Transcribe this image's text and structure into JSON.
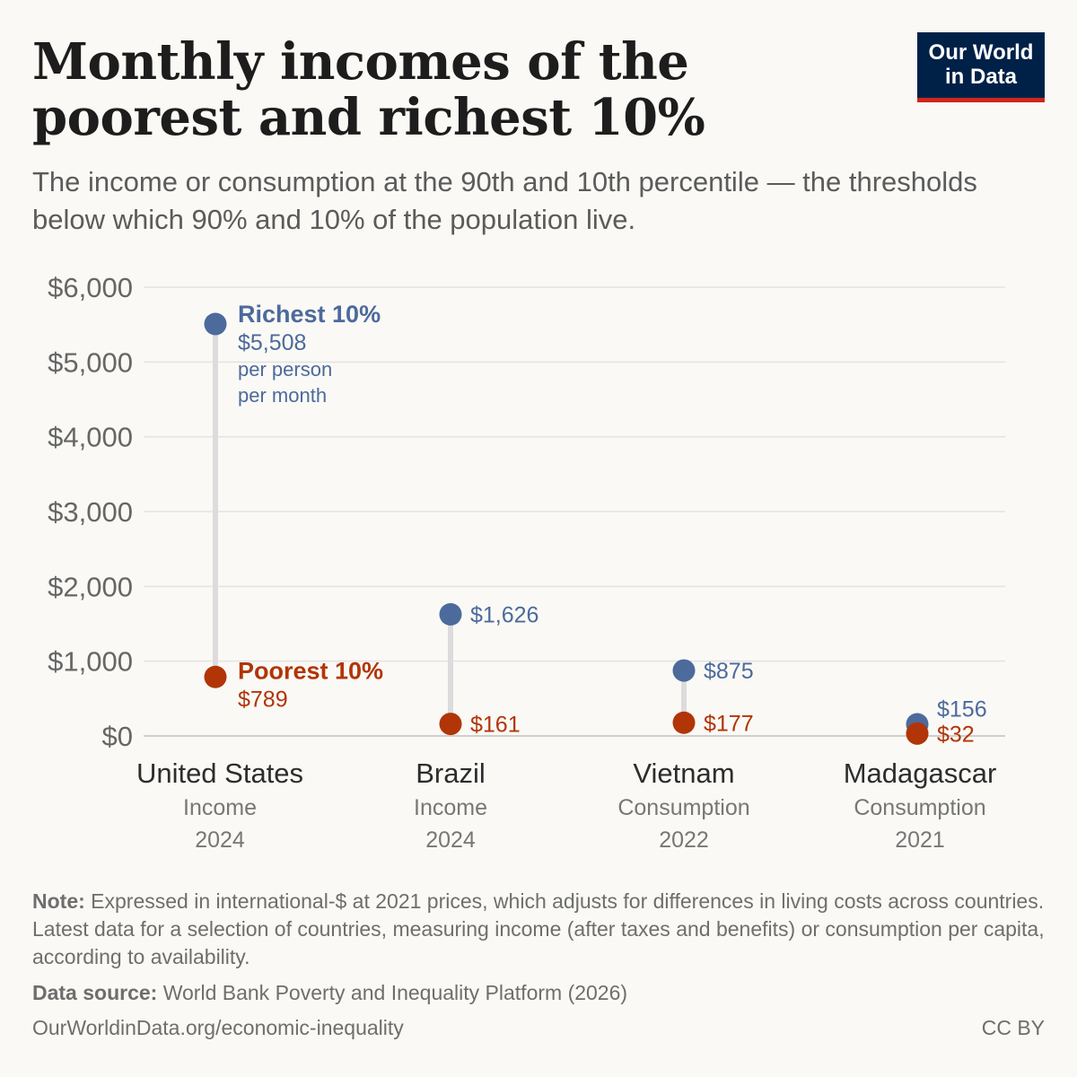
{
  "header": {
    "title": "Monthly incomes of the poorest and richest 10%",
    "subtitle": "The income or consumption at the 90th and 10th percentile — the thresholds below which 90% and 10% of the population live.",
    "logo_line1": "Our World",
    "logo_line2": "in Data"
  },
  "chart_data": {
    "type": "scatter",
    "ylim": [
      0,
      6000
    ],
    "yticks": [
      "$0",
      "$1,000",
      "$2,000",
      "$3,000",
      "$4,000",
      "$5,000",
      "$6,000"
    ],
    "ytick_values": [
      0,
      1000,
      2000,
      3000,
      4000,
      5000,
      6000
    ],
    "grid": true,
    "categories": [
      {
        "country": "United States",
        "measure": "Income",
        "year": "2024"
      },
      {
        "country": "Brazil",
        "measure": "Income",
        "year": "2024"
      },
      {
        "country": "Vietnam",
        "measure": "Consumption",
        "year": "2022"
      },
      {
        "country": "Madagascar",
        "measure": "Consumption",
        "year": "2021"
      }
    ],
    "series": [
      {
        "name": "Richest 10%",
        "color": "#4c6a9c",
        "values": [
          5508,
          1626,
          875,
          156
        ],
        "labels": [
          "$5,508",
          "$1,626",
          "$875",
          "$156"
        ],
        "annotation_line1": "per person",
        "annotation_line2": "per month"
      },
      {
        "name": "Poorest 10%",
        "color": "#b13507",
        "values": [
          789,
          161,
          177,
          32
        ],
        "labels": [
          "$789",
          "$161",
          "$177",
          "$32"
        ]
      }
    ],
    "connector_color": "#dcdcdc"
  },
  "footer": {
    "note_label": "Note:",
    "note_text": " Expressed in international-$ at 2021 prices, which adjusts for differences in living costs across countries. Latest data for a selection of countries, measuring income (after taxes and benefits) or consumption per capita, according to availability.",
    "source_label": "Data source:",
    "source_text": " World Bank Poverty and Inequality Platform (2026)",
    "url": "OurWorldinData.org/economic-inequality",
    "license": "CC BY"
  }
}
